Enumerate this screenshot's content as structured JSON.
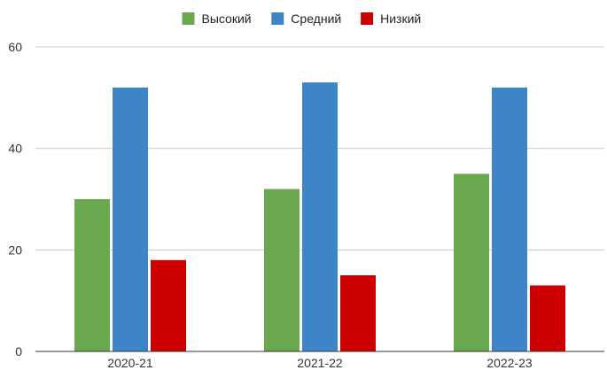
{
  "chart_data": {
    "type": "bar",
    "categories": [
      "2020-21",
      "2021-22",
      "2022-23"
    ],
    "series": [
      {
        "name": "Высокий",
        "values": [
          30,
          32,
          35
        ],
        "color": "#6aa84f"
      },
      {
        "name": "Средний",
        "values": [
          52,
          53,
          52
        ],
        "color": "#3d85c6"
      },
      {
        "name": "Низкий",
        "values": [
          18,
          15,
          13
        ],
        "color": "#cc0000"
      }
    ],
    "ylim": [
      0,
      60
    ],
    "yticks": [
      0,
      20,
      40,
      60
    ],
    "grid": true,
    "legend_position": "top"
  }
}
